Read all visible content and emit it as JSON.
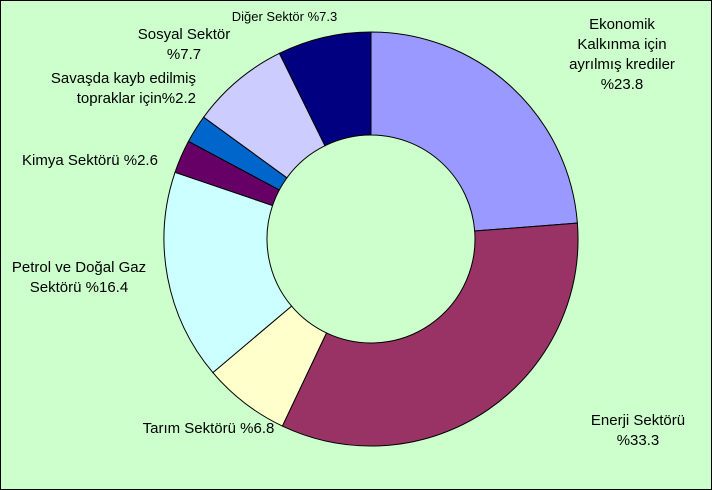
{
  "chart_data": {
    "type": "donut",
    "categories": [
      "Ekonomik Kalkınma için ayrılmış krediler",
      "Enerji Sektörü",
      "Tarım Sektörü",
      "Petrol ve Doğal Gaz Sektörü",
      "Kimya Sektörü",
      "Savaşda kayb edilmiş topraklar için",
      "Sosyal Sektör",
      "Diğer Sektör"
    ],
    "values": [
      23.8,
      33.3,
      6.8,
      16.4,
      2.6,
      2.2,
      7.7,
      7.3
    ],
    "value_labels": [
      "%23.8",
      "%33.3",
      "%6.8",
      "%16.4",
      "%2.6",
      "%2.2",
      "%7.7",
      "%7.3"
    ],
    "colors": [
      "#9999ff",
      "#993366",
      "#ffffcc",
      "#ccffff",
      "#660066",
      "#0066cc",
      "#ccccff",
      "#000080"
    ]
  }
}
